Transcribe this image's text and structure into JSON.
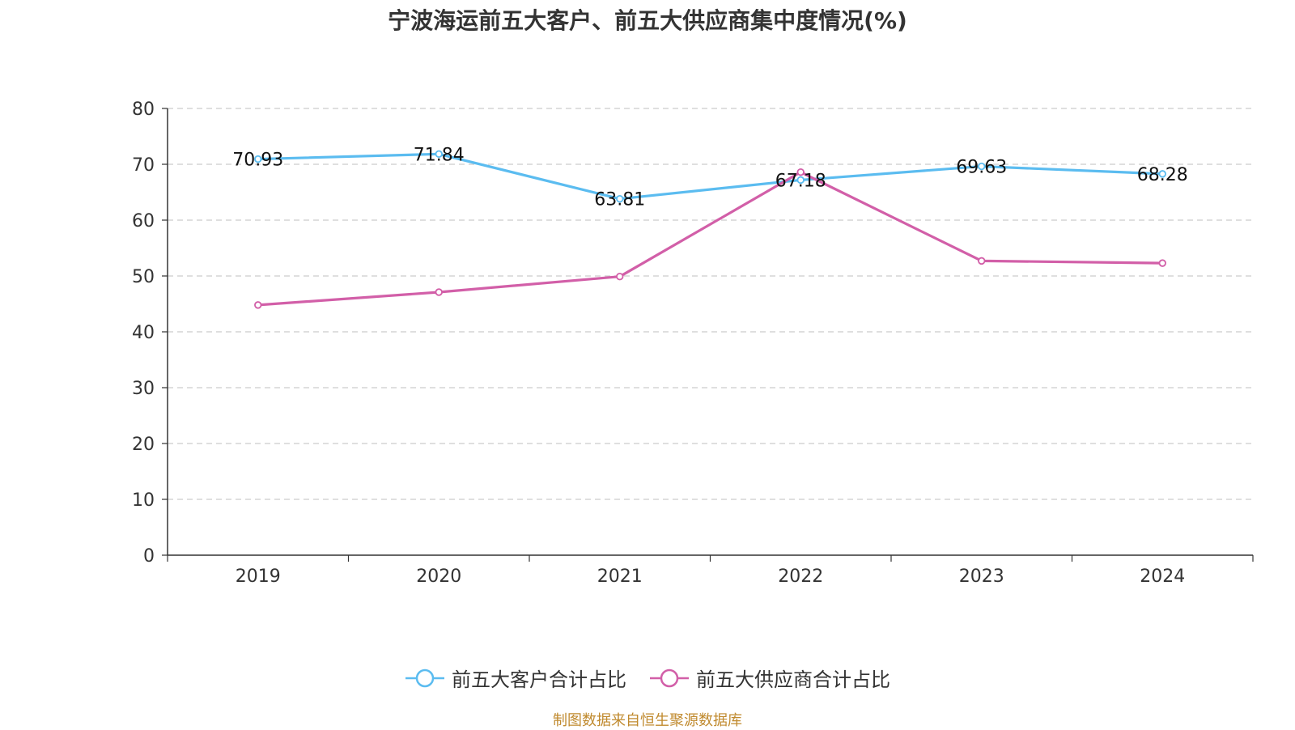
{
  "chart_data": {
    "type": "line",
    "title": "宁波海运前五大客户、前五大供应商集中度情况(%)",
    "categories": [
      "2019",
      "2020",
      "2021",
      "2022",
      "2023",
      "2024"
    ],
    "ylim": [
      0,
      80
    ],
    "yticks": [
      "0",
      "10",
      "20",
      "30",
      "40",
      "50",
      "60",
      "70",
      "80"
    ],
    "grid": true,
    "legend_position": "bottom-center",
    "series": [
      {
        "name": "前五大客户合计占比",
        "color": "#5bbcf0",
        "values": [
          70.93,
          71.84,
          63.81,
          67.18,
          69.63,
          68.28
        ],
        "labels": [
          "70.93",
          "71.84",
          "63.81",
          "67.18",
          "69.63",
          "68.28"
        ]
      },
      {
        "name": "前五大供应商合计占比",
        "color": "#d25fa8",
        "values": [
          44.8,
          47.1,
          49.9,
          68.6,
          52.7,
          52.3
        ]
      }
    ]
  },
  "footer": {
    "source": "制图数据来自恒生聚源数据库"
  }
}
